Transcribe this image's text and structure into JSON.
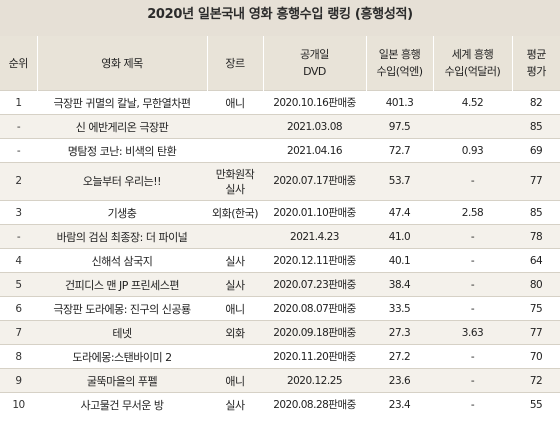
{
  "title": "2020년 일본국내 영화 흥행수입 랭킹 (흥행성적)",
  "headers": {
    "rank": "순위",
    "title": "영화 제목",
    "genre": "장르",
    "release_1": "공개일",
    "release_2": "DVD",
    "japan_1": "일본 흥행",
    "japan_2": "수입(억엔)",
    "world_1": "세계 흥행",
    "world_2": "수입(억달러)",
    "rating_1": "평균",
    "rating_2": "평가"
  },
  "rows": [
    {
      "rank": "1",
      "title": "극장판 귀멸의 칼날, 무한열차편",
      "genre": "애니",
      "release": "2020.10.16판매중",
      "japan": "401.3",
      "world": "4.52",
      "rating": "82"
    },
    {
      "rank": "-",
      "title": "신 에반게리온 극장판",
      "genre": "",
      "release": "2021.03.08",
      "japan": "97.5",
      "world": "",
      "rating": "85"
    },
    {
      "rank": "-",
      "title": "명탐정 코난: 비색의 탄환",
      "genre": "",
      "release": "2021.04.16",
      "japan": "72.7",
      "world": "0.93",
      "rating": "69"
    },
    {
      "rank": "2",
      "title": "오늘부터 우리는!!",
      "genre": "만화원작",
      "genre2": "실사",
      "release": "2020.07.17판매중",
      "japan": "53.7",
      "world": "-",
      "rating": "77"
    },
    {
      "rank": "3",
      "title": "기생충",
      "genre": "외화(한국)",
      "release": "2020.01.10판매중",
      "japan": "47.4",
      "world": "2.58",
      "rating": "85"
    },
    {
      "rank": "-",
      "title": "바람의 검심 최종장: 더 파이널",
      "genre": "",
      "release": "2021.4.23",
      "japan": "41.0",
      "world": "-",
      "rating": "78"
    },
    {
      "rank": "4",
      "title": "신해석 삼국지",
      "genre": "실사",
      "release": "2020.12.11판매중",
      "japan": "40.1",
      "world": "-",
      "rating": "64"
    },
    {
      "rank": "5",
      "title": "건피디스 맨 JP 프린세스편",
      "genre": "실사",
      "release": "2020.07.23판매중",
      "japan": "38.4",
      "world": "-",
      "rating": "80"
    },
    {
      "rank": "6",
      "title": "극장판 도라에몽: 진구의 신공룡",
      "genre": "애니",
      "release": "2020.08.07판매중",
      "japan": "33.5",
      "world": "-",
      "rating": "75"
    },
    {
      "rank": "7",
      "title": "테넷",
      "genre": "외화",
      "release": "2020.09.18판매중",
      "japan": "27.3",
      "world": "3.63",
      "rating": "77"
    },
    {
      "rank": "8",
      "title": "도라에몽:스탠바이미 2",
      "genre": "",
      "release": "2020.11.20판매중",
      "japan": "27.2",
      "world": "-",
      "rating": "70"
    },
    {
      "rank": "9",
      "title": "굴뚝마을의 푸펠",
      "genre": "애니",
      "release": "2020.12.25",
      "japan": "23.6",
      "world": "-",
      "rating": "72"
    },
    {
      "rank": "10",
      "title": "사고물건 무서운 방",
      "genre": "실사",
      "release": "2020.08.28판매중",
      "japan": "23.4",
      "world": "-",
      "rating": "55"
    }
  ]
}
